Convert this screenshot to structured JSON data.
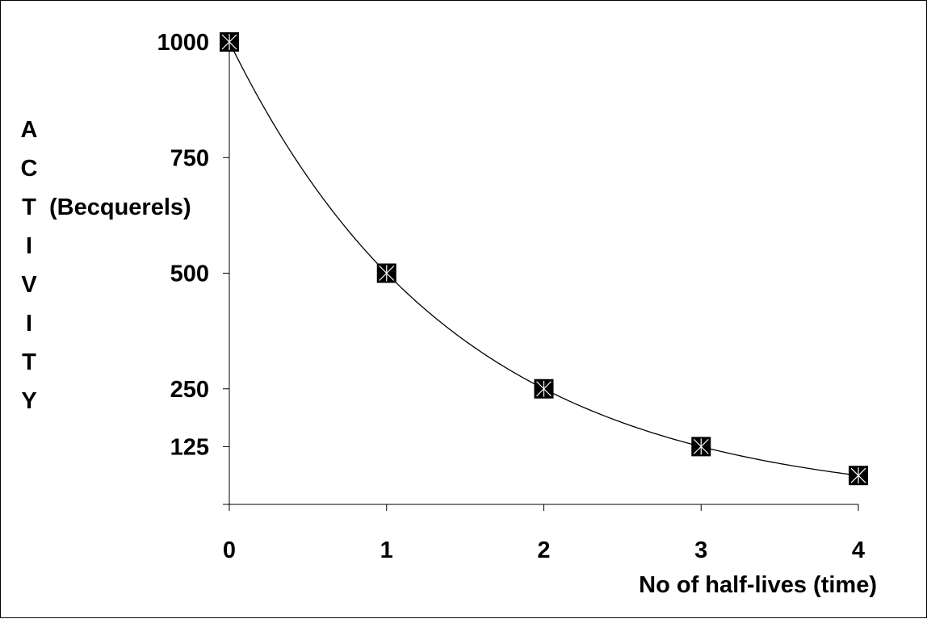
{
  "chart_data": {
    "type": "line",
    "x": [
      0,
      1,
      2,
      3,
      4
    ],
    "values": [
      1000,
      500,
      250,
      125,
      62.5
    ],
    "xlabel": "No of half-lives (time)",
    "ylabel_letters": [
      "A",
      "C",
      "T",
      "I",
      "V",
      "I",
      "T",
      "Y"
    ],
    "ylabel_unit": "(Becquerels)",
    "x_ticks": [
      "0",
      "1",
      "2",
      "3",
      "4"
    ],
    "y_ticks": [
      {
        "label": "1000",
        "value": 1000
      },
      {
        "label": "750",
        "value": 750
      },
      {
        "label": "500",
        "value": 500
      },
      {
        "label": "250",
        "value": 250
      },
      {
        "label": "125",
        "value": 125
      }
    ],
    "xlim": [
      0,
      4
    ],
    "ylim": [
      0,
      1000
    ],
    "grid": false,
    "marker": "square-with-cross",
    "line_color": "#000000",
    "marker_color": "#000000"
  }
}
